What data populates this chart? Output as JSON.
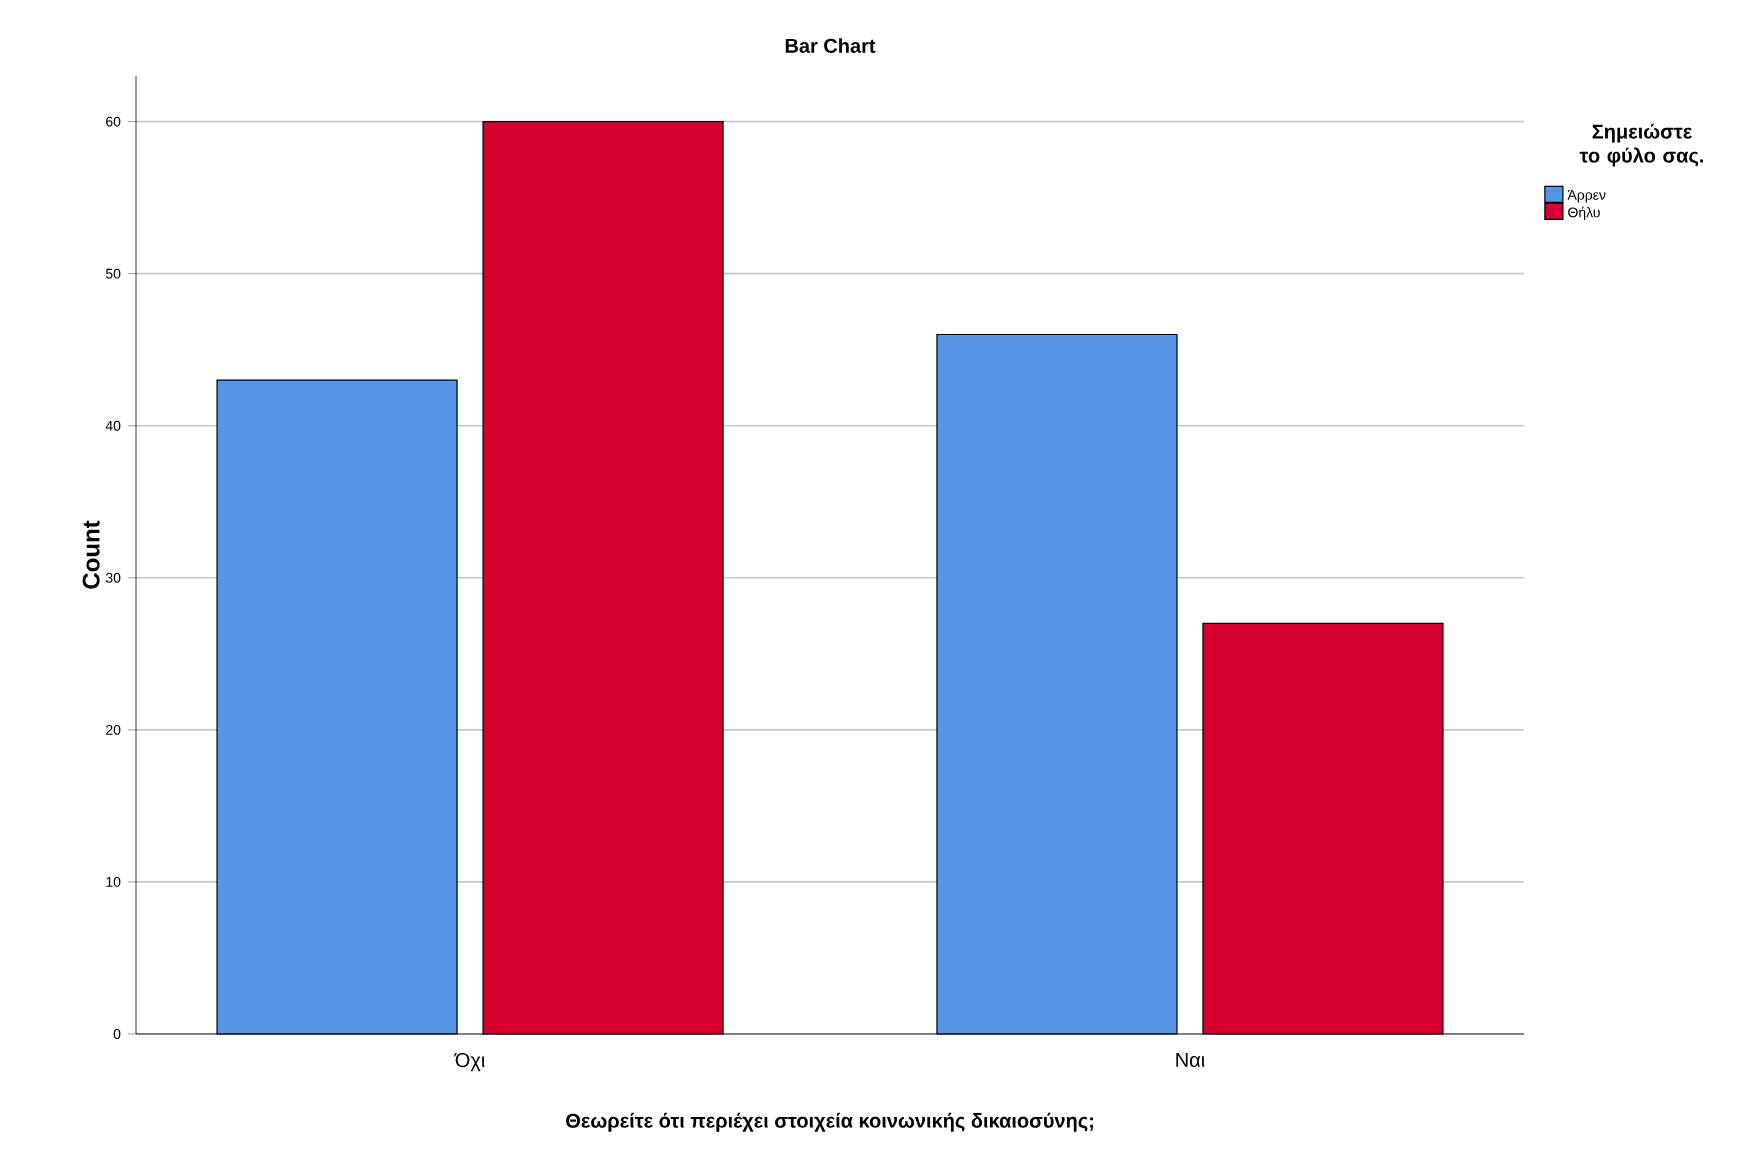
{
  "chart_data": {
    "type": "bar",
    "title": "Bar Chart",
    "xlabel": "Θεωρείτε ότι περιέχει στοιχεία κοινωνικής δικαιοσύνης;",
    "ylabel": "Count",
    "legend_title": "Σημειώστε το φύλο σας.",
    "categories": [
      "Όχι",
      "Ναι"
    ],
    "series": [
      {
        "name": "Άρρεν",
        "color": "#5596e6",
        "values": [
          43,
          46
        ]
      },
      {
        "name": "Θήλυ",
        "color": "#d5002f",
        "values": [
          60,
          27
        ]
      }
    ],
    "ylim": [
      0,
      63
    ],
    "yticks": [
      0,
      10,
      20,
      30,
      40,
      50,
      60
    ],
    "grid": "y",
    "legend": "right"
  }
}
